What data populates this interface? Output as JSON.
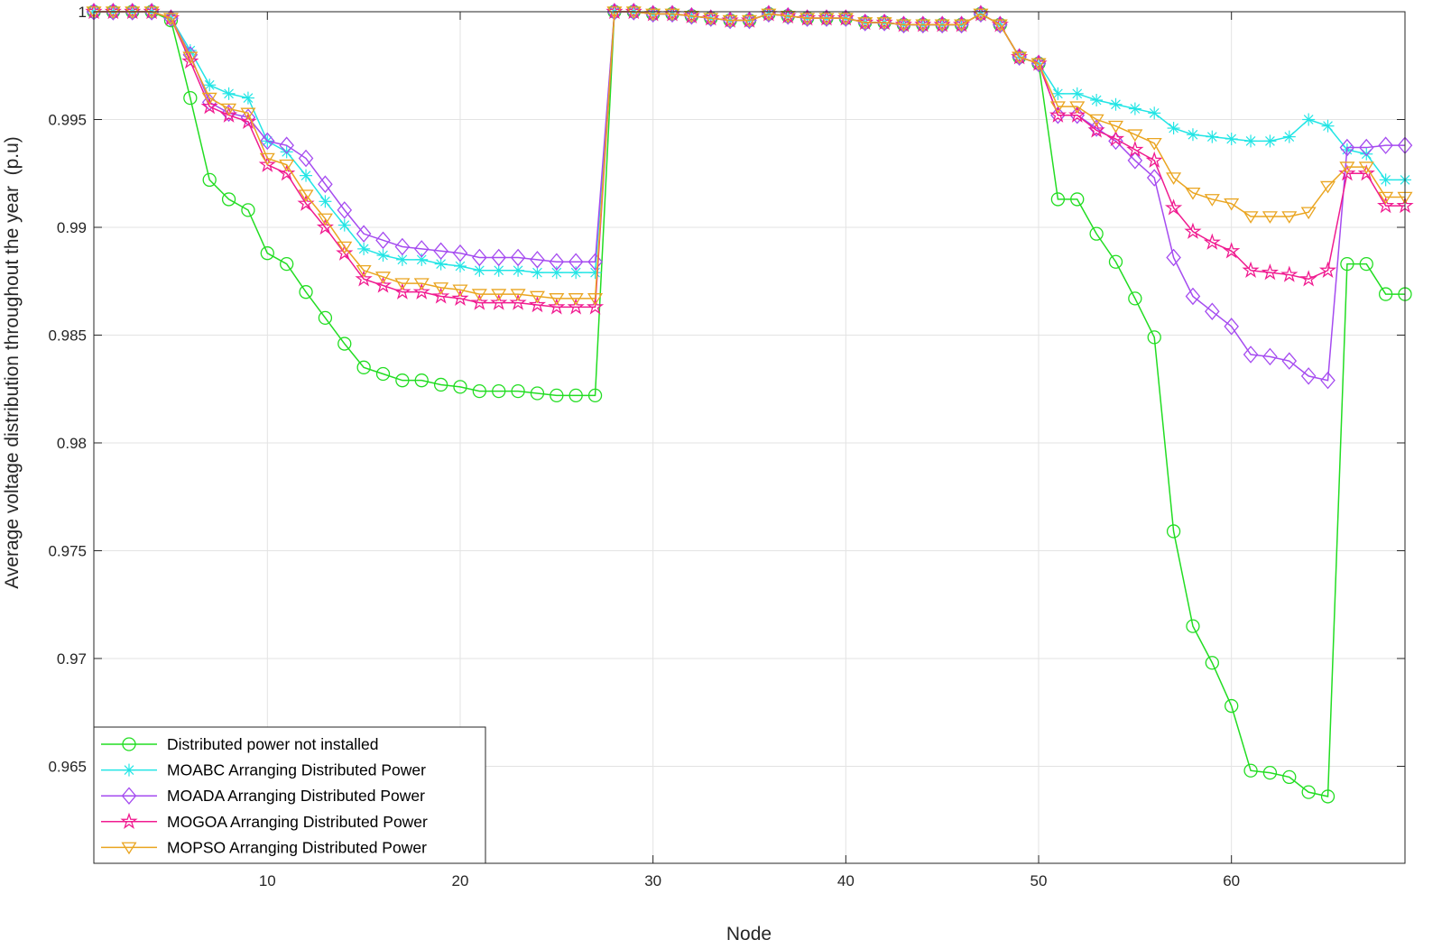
{
  "chart_data": {
    "type": "line",
    "title": "",
    "xlabel": "Node",
    "ylabel": "Average voltage distribution throughout the year  (p.u)",
    "xlim": [
      1,
      69
    ],
    "ylim": [
      0.9605,
      1.0
    ],
    "x_ticks": [
      10,
      20,
      30,
      40,
      50,
      60
    ],
    "y_ticks": [
      0.965,
      0.97,
      0.975,
      0.98,
      0.985,
      0.99,
      0.995,
      1
    ],
    "y_tick_labels": [
      "0.965",
      "0.97",
      "0.975",
      "0.98",
      "0.985",
      "0.99",
      "0.995",
      "1"
    ],
    "grid": true,
    "legend_position": "bottom-left",
    "x": [
      1,
      2,
      3,
      4,
      5,
      6,
      7,
      8,
      9,
      10,
      11,
      12,
      13,
      14,
      15,
      16,
      17,
      18,
      19,
      20,
      21,
      22,
      23,
      24,
      25,
      26,
      27,
      28,
      29,
      30,
      31,
      32,
      33,
      34,
      35,
      36,
      37,
      38,
      39,
      40,
      41,
      42,
      43,
      44,
      45,
      46,
      47,
      48,
      49,
      50,
      51,
      52,
      53,
      54,
      55,
      56,
      57,
      58,
      59,
      60,
      61,
      62,
      63,
      64,
      65,
      66,
      67,
      68,
      69
    ],
    "series": [
      {
        "name": "Distributed power not installed",
        "color": "#22dd22",
        "marker": "circle",
        "values": [
          1.0,
          1.0,
          1.0,
          1.0,
          0.9996,
          0.996,
          0.9922,
          0.9913,
          0.9908,
          0.9888,
          0.9883,
          0.987,
          0.9858,
          0.9846,
          0.9835,
          0.9832,
          0.9829,
          0.9829,
          0.9827,
          0.9826,
          0.9824,
          0.9824,
          0.9824,
          0.9823,
          0.9822,
          0.9822,
          0.9822,
          1.0,
          1.0,
          0.9999,
          0.9999,
          0.9998,
          0.9997,
          0.9996,
          0.9996,
          0.9999,
          0.9998,
          0.9997,
          0.9997,
          0.9997,
          0.9995,
          0.9995,
          0.9994,
          0.9994,
          0.9994,
          0.9994,
          0.9999,
          0.9994,
          0.9979,
          0.9976,
          0.9913,
          0.9913,
          0.9897,
          0.9884,
          0.9867,
          0.9849,
          0.9759,
          0.9715,
          0.9698,
          0.9678,
          0.9648,
          0.9647,
          0.9645,
          0.9638,
          0.9636,
          0.9883,
          0.9883,
          0.9869,
          0.9869
        ]
      },
      {
        "name": "MOABC Arranging Distributed Power",
        "color": "#22e5e5",
        "marker": "asterisk",
        "values": [
          1.0,
          1.0,
          1.0,
          1.0,
          0.9997,
          0.9982,
          0.9966,
          0.9962,
          0.996,
          0.994,
          0.9935,
          0.9924,
          0.9912,
          0.9901,
          0.989,
          0.9887,
          0.9885,
          0.9885,
          0.9883,
          0.9882,
          0.988,
          0.988,
          0.988,
          0.9879,
          0.9879,
          0.9879,
          0.9879,
          1.0,
          1.0,
          0.9999,
          0.9999,
          0.9998,
          0.9997,
          0.9996,
          0.9996,
          0.9999,
          0.9998,
          0.9997,
          0.9997,
          0.9997,
          0.9995,
          0.9995,
          0.9994,
          0.9994,
          0.9994,
          0.9994,
          0.9999,
          0.9994,
          0.9979,
          0.9976,
          0.9962,
          0.9962,
          0.9959,
          0.9957,
          0.9955,
          0.9953,
          0.9946,
          0.9943,
          0.9942,
          0.9941,
          0.994,
          0.994,
          0.9942,
          0.995,
          0.9947,
          0.9936,
          0.9934,
          0.9922,
          0.9922
        ]
      },
      {
        "name": "MOADA Arranging Distributed Power",
        "color": "#a54bf0",
        "marker": "diamond",
        "values": [
          1.0,
          1.0,
          1.0,
          1.0,
          0.9997,
          0.998,
          0.9958,
          0.9953,
          0.9951,
          0.994,
          0.9938,
          0.9932,
          0.992,
          0.9908,
          0.9897,
          0.9894,
          0.9891,
          0.989,
          0.9889,
          0.9888,
          0.9886,
          0.9886,
          0.9886,
          0.9885,
          0.9884,
          0.9884,
          0.9884,
          1.0,
          1.0,
          0.9999,
          0.9999,
          0.9998,
          0.9997,
          0.9996,
          0.9996,
          0.9999,
          0.9998,
          0.9997,
          0.9997,
          0.9997,
          0.9995,
          0.9995,
          0.9994,
          0.9994,
          0.9994,
          0.9994,
          0.9999,
          0.9994,
          0.9979,
          0.9976,
          0.9952,
          0.9952,
          0.9946,
          0.994,
          0.9931,
          0.9923,
          0.9886,
          0.9868,
          0.9861,
          0.9854,
          0.9841,
          0.984,
          0.9838,
          0.9831,
          0.9829,
          0.9937,
          0.9937,
          0.9938,
          0.9938
        ]
      },
      {
        "name": "MOGOA Arranging Distributed Power",
        "color": "#f01b90",
        "marker": "pentagram",
        "values": [
          1.0,
          1.0,
          1.0,
          1.0,
          0.9997,
          0.9977,
          0.9956,
          0.9952,
          0.9949,
          0.9929,
          0.9925,
          0.9911,
          0.99,
          0.9888,
          0.9876,
          0.9873,
          0.987,
          0.987,
          0.9868,
          0.9867,
          0.9865,
          0.9865,
          0.9865,
          0.9864,
          0.9863,
          0.9863,
          0.9863,
          1.0,
          1.0,
          0.9999,
          0.9999,
          0.9998,
          0.9997,
          0.9996,
          0.9996,
          0.9999,
          0.9998,
          0.9997,
          0.9997,
          0.9997,
          0.9995,
          0.9995,
          0.9994,
          0.9994,
          0.9994,
          0.9994,
          0.9999,
          0.9994,
          0.9979,
          0.9976,
          0.9952,
          0.9952,
          0.9945,
          0.9941,
          0.9936,
          0.9931,
          0.9909,
          0.9898,
          0.9893,
          0.9889,
          0.988,
          0.9879,
          0.9878,
          0.9876,
          0.988,
          0.9925,
          0.9925,
          0.991,
          0.991
        ]
      },
      {
        "name": "MOPSO Arranging Distributed Power",
        "color": "#eaa520",
        "marker": "triangle-down",
        "values": [
          1.0,
          1.0,
          1.0,
          1.0,
          0.9997,
          0.9979,
          0.996,
          0.9955,
          0.9953,
          0.9932,
          0.9929,
          0.9915,
          0.9904,
          0.9891,
          0.988,
          0.9877,
          0.9874,
          0.9874,
          0.9872,
          0.9871,
          0.9869,
          0.9869,
          0.9869,
          0.9868,
          0.9867,
          0.9867,
          0.9867,
          1.0,
          1.0,
          0.9999,
          0.9999,
          0.9998,
          0.9997,
          0.9996,
          0.9996,
          0.9999,
          0.9998,
          0.9997,
          0.9997,
          0.9997,
          0.9995,
          0.9995,
          0.9994,
          0.9994,
          0.9994,
          0.9994,
          0.9999,
          0.9994,
          0.9979,
          0.9976,
          0.9956,
          0.9956,
          0.995,
          0.9947,
          0.9943,
          0.9939,
          0.9923,
          0.9916,
          0.9913,
          0.9911,
          0.9905,
          0.9905,
          0.9905,
          0.9907,
          0.9919,
          0.9928,
          0.9928,
          0.9914,
          0.9914
        ]
      }
    ]
  }
}
